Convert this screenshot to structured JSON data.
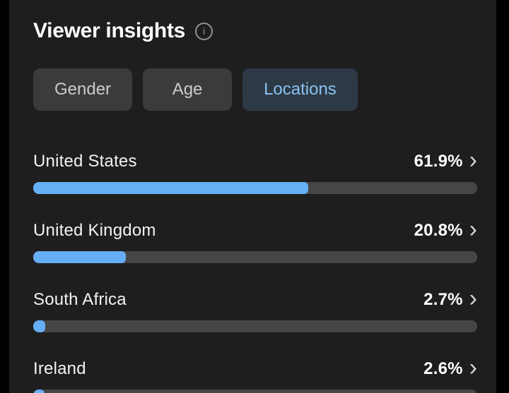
{
  "header": {
    "title": "Viewer insights"
  },
  "icons": {
    "info_icon_glyph": "i",
    "chevron_right_glyph": "›"
  },
  "tabs": [
    {
      "label": "Gender",
      "selected": false
    },
    {
      "label": "Age",
      "selected": false
    },
    {
      "label": "Locations",
      "selected": true
    }
  ],
  "locations": [
    {
      "name": "United States",
      "percent_label": "61.9%",
      "value": 61.9
    },
    {
      "name": "United Kingdom",
      "percent_label": "20.8%",
      "value": 20.8
    },
    {
      "name": "South Africa",
      "percent_label": "2.7%",
      "value": 2.7
    },
    {
      "name": "Ireland",
      "percent_label": "2.6%",
      "value": 2.6
    }
  ],
  "chart_data": {
    "type": "bar",
    "orientation": "horizontal",
    "title": "Viewer insights — Locations",
    "categories": [
      "United States",
      "United Kingdom",
      "South Africa",
      "Ireland"
    ],
    "values": [
      61.9,
      20.8,
      2.7,
      2.6
    ],
    "unit": "%",
    "xlim": [
      0,
      100
    ],
    "grid": false,
    "legend": false
  },
  "colors": {
    "page_bg": "#1e1e1e",
    "edge_bg": "#000000",
    "title_text": "#ffffff",
    "row_text": "#f2f2f2",
    "bar_fill": "#66aef6",
    "bar_track": "#464646",
    "tab_bg": "#3b3b3b",
    "tab_text": "#cbcbcb",
    "tab_selected_bg": "#2d3a46",
    "tab_selected_text": "#8cc0f2"
  }
}
